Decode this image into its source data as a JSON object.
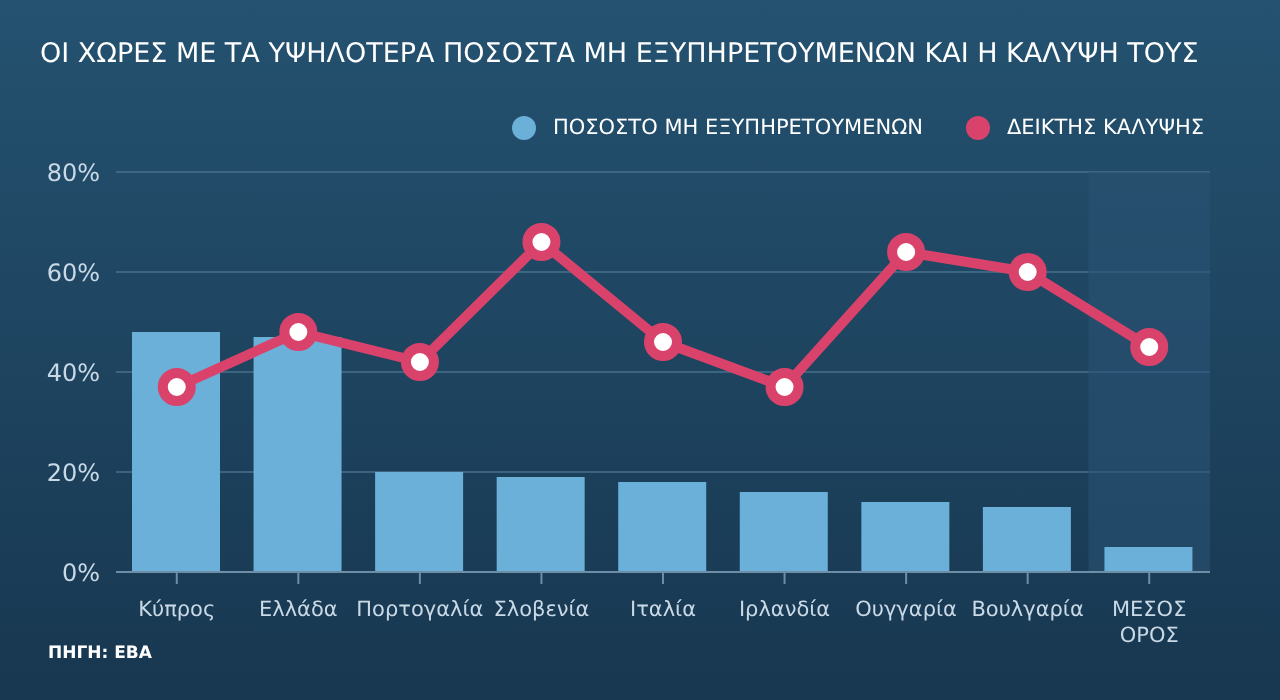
{
  "chart_data": {
    "type": "bar",
    "title": "ΟΙ ΧΩΡΕΣ ΜΕ ΤΑ ΥΨΗΛΟΤΕΡΑ ΠΟΣΟΣΤΑ ΜΗ ΕΞΥΠΗΡΕΤΟΥΜΕΝΩΝ ΚΑΙ Η ΚΑΛΥΨΗ ΤΟΥΣ",
    "categories": [
      "Κύπρος",
      "Ελλάδα",
      "Πορτογαλία",
      "Σλοβενία",
      "Ιταλία",
      "Ιρλανδία",
      "Ουγγαρία",
      "Βουλγαρία",
      "ΜΕΣΟΣ ΟΡΟΣ"
    ],
    "series": [
      {
        "name": "ΠΟΣΟΣΤΟ ΜΗ ΕΞΥΠΗΡΕΤΟΥΜΕΝΩΝ",
        "color": "#6ab0d9",
        "values": [
          48,
          47,
          20,
          19,
          18,
          16,
          14,
          13,
          5
        ]
      },
      {
        "name": "ΔΕΙΚΤΗΣ ΚΑΛΥΨΗΣ",
        "type": "line",
        "color": "#d9436b",
        "values": [
          37,
          48,
          42,
          66,
          46,
          37,
          64,
          60,
          45
        ]
      }
    ],
    "ylim": [
      0,
      80
    ],
    "yticks": [
      {
        "value": 0,
        "label": "0%"
      },
      {
        "value": 20,
        "label": "20%"
      },
      {
        "value": 40,
        "label": "40%"
      },
      {
        "value": 60,
        "label": "60%"
      },
      {
        "value": 80,
        "label": "80%"
      }
    ],
    "bands": [
      {
        "axis": "x",
        "from": "ΜΕΣΟΣ ΟΡΟΣ",
        "to": "ΜΕΣΟΣ ΟΡΟΣ",
        "color": "#2a5273"
      }
    ],
    "grid": "y",
    "legend": "top right",
    "marker": "circle",
    "line_style": "solid",
    "annotations": [
      "ΠΗΓΗ: EBA"
    ]
  }
}
